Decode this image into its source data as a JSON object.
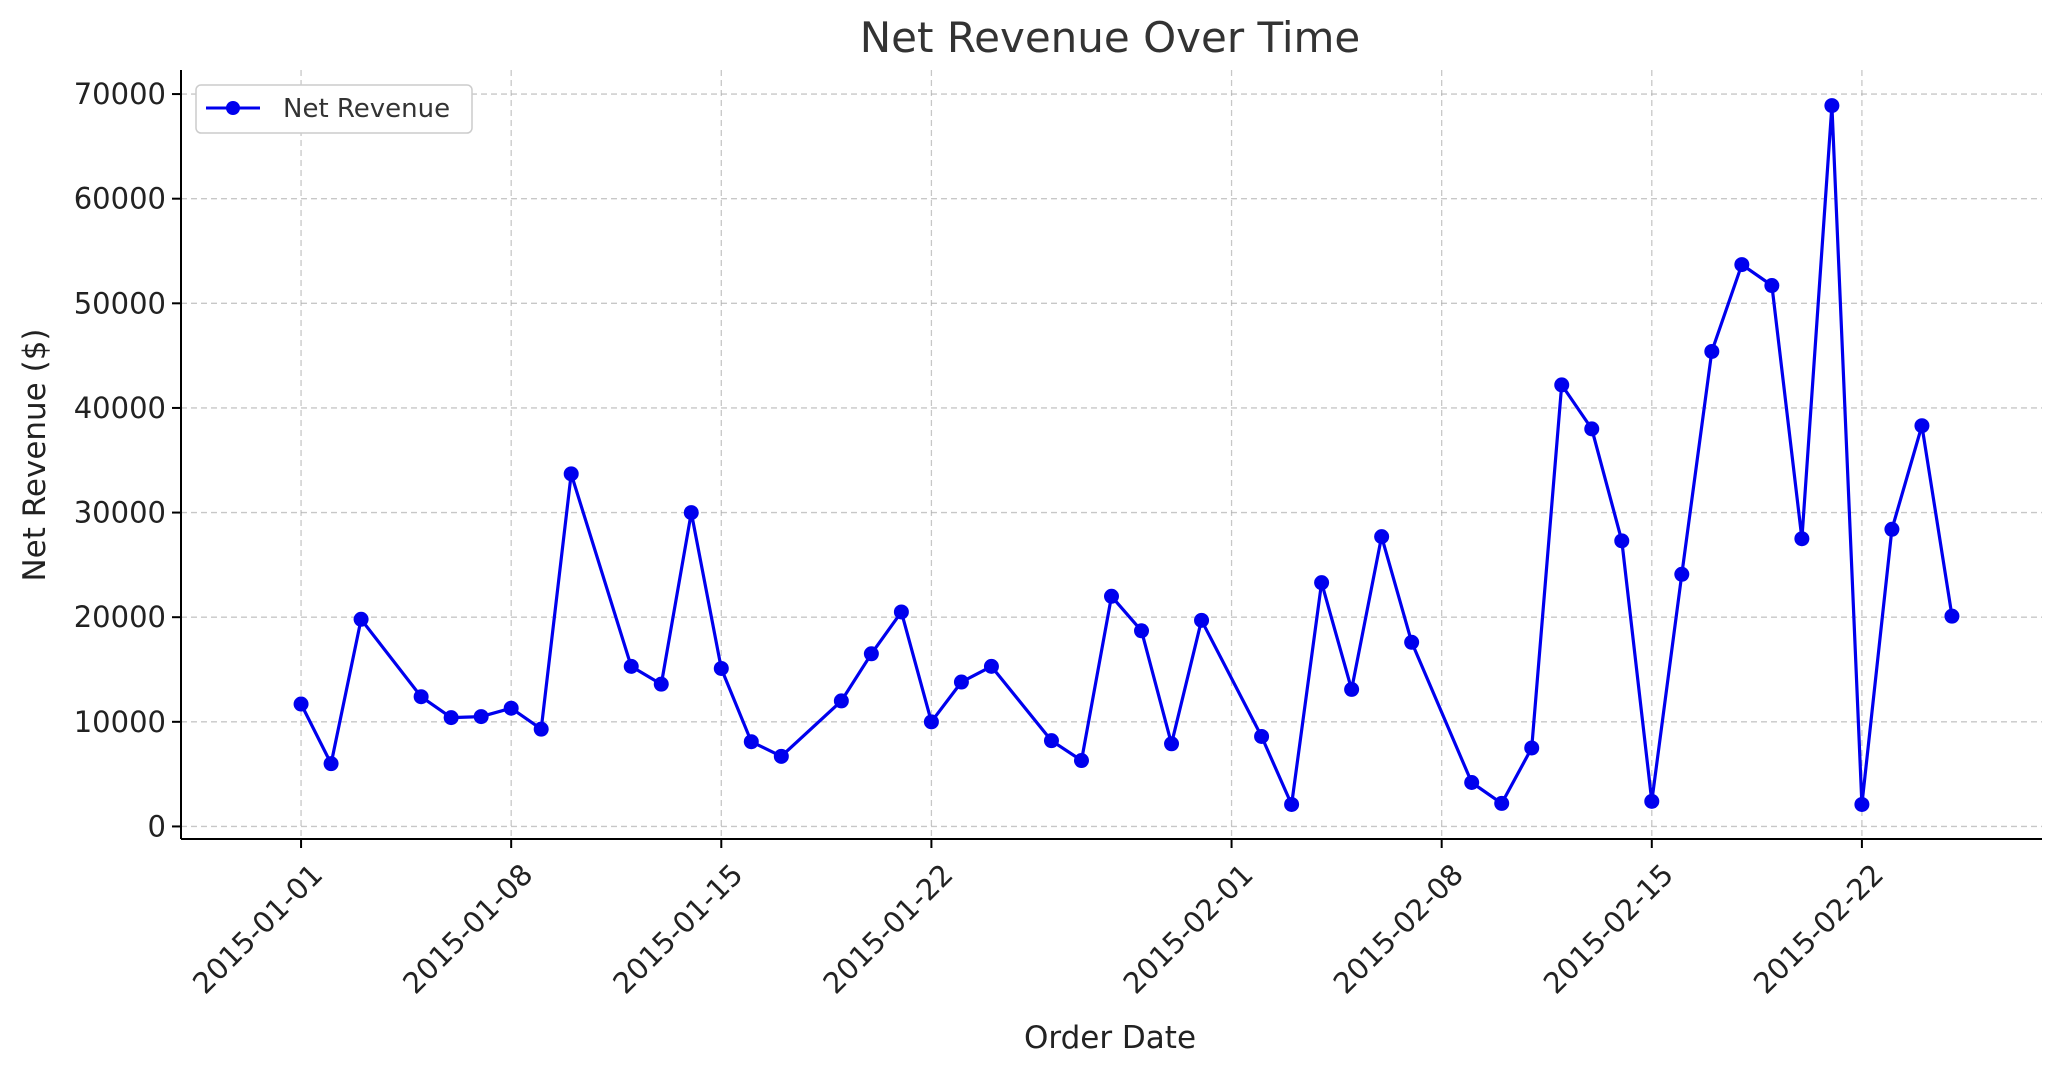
{
  "chart_data": {
    "type": "line",
    "title": "Net Revenue Over Time",
    "xlabel": "Order Date",
    "ylabel": "Net Revenue ($)",
    "x_ticks": [
      "2015-01-01",
      "2015-01-08",
      "2015-01-15",
      "2015-01-22",
      "2015-02-01",
      "2015-02-08",
      "2015-02-15",
      "2015-02-22"
    ],
    "y_ticks": [
      0,
      10000,
      20000,
      30000,
      40000,
      50000,
      60000,
      70000
    ],
    "xlim": [
      "2014-12-28",
      "2015-02-28"
    ],
    "ylim": [
      -1200,
      72300
    ],
    "grid": true,
    "legend_position": "top-left",
    "series": [
      {
        "name": "Net Revenue",
        "color": "#0000ee",
        "marker": "circle",
        "x": [
          "2015-01-01",
          "2015-01-02",
          "2015-01-03",
          "2015-01-05",
          "2015-01-06",
          "2015-01-07",
          "2015-01-08",
          "2015-01-09",
          "2015-01-10",
          "2015-01-12",
          "2015-01-13",
          "2015-01-14",
          "2015-01-15",
          "2015-01-16",
          "2015-01-17",
          "2015-01-19",
          "2015-01-20",
          "2015-01-21",
          "2015-01-22",
          "2015-01-23",
          "2015-01-24",
          "2015-01-26",
          "2015-01-27",
          "2015-01-28",
          "2015-01-29",
          "2015-01-30",
          "2015-01-31",
          "2015-02-02",
          "2015-02-03",
          "2015-02-04",
          "2015-02-05",
          "2015-02-06",
          "2015-02-07",
          "2015-02-09",
          "2015-02-10",
          "2015-02-11",
          "2015-02-12",
          "2015-02-13",
          "2015-02-14",
          "2015-02-15",
          "2015-02-16",
          "2015-02-17",
          "2015-02-18",
          "2015-02-19",
          "2015-02-20",
          "2015-02-21",
          "2015-02-22",
          "2015-02-23",
          "2015-02-24",
          "2015-02-25"
        ],
        "values": [
          11700,
          6000,
          19800,
          12400,
          10400,
          10500,
          11300,
          9300,
          33700,
          15300,
          13600,
          30000,
          15100,
          8100,
          6700,
          12000,
          16500,
          20500,
          10000,
          13800,
          15300,
          8200,
          6300,
          22000,
          18700,
          7900,
          19700,
          8600,
          2100,
          23300,
          13100,
          27700,
          17600,
          4200,
          2200,
          7500,
          42200,
          38000,
          27300,
          2400,
          24100,
          45400,
          53700,
          51700,
          27500,
          68900,
          2100,
          28400,
          38300,
          20100
        ]
      }
    ]
  }
}
